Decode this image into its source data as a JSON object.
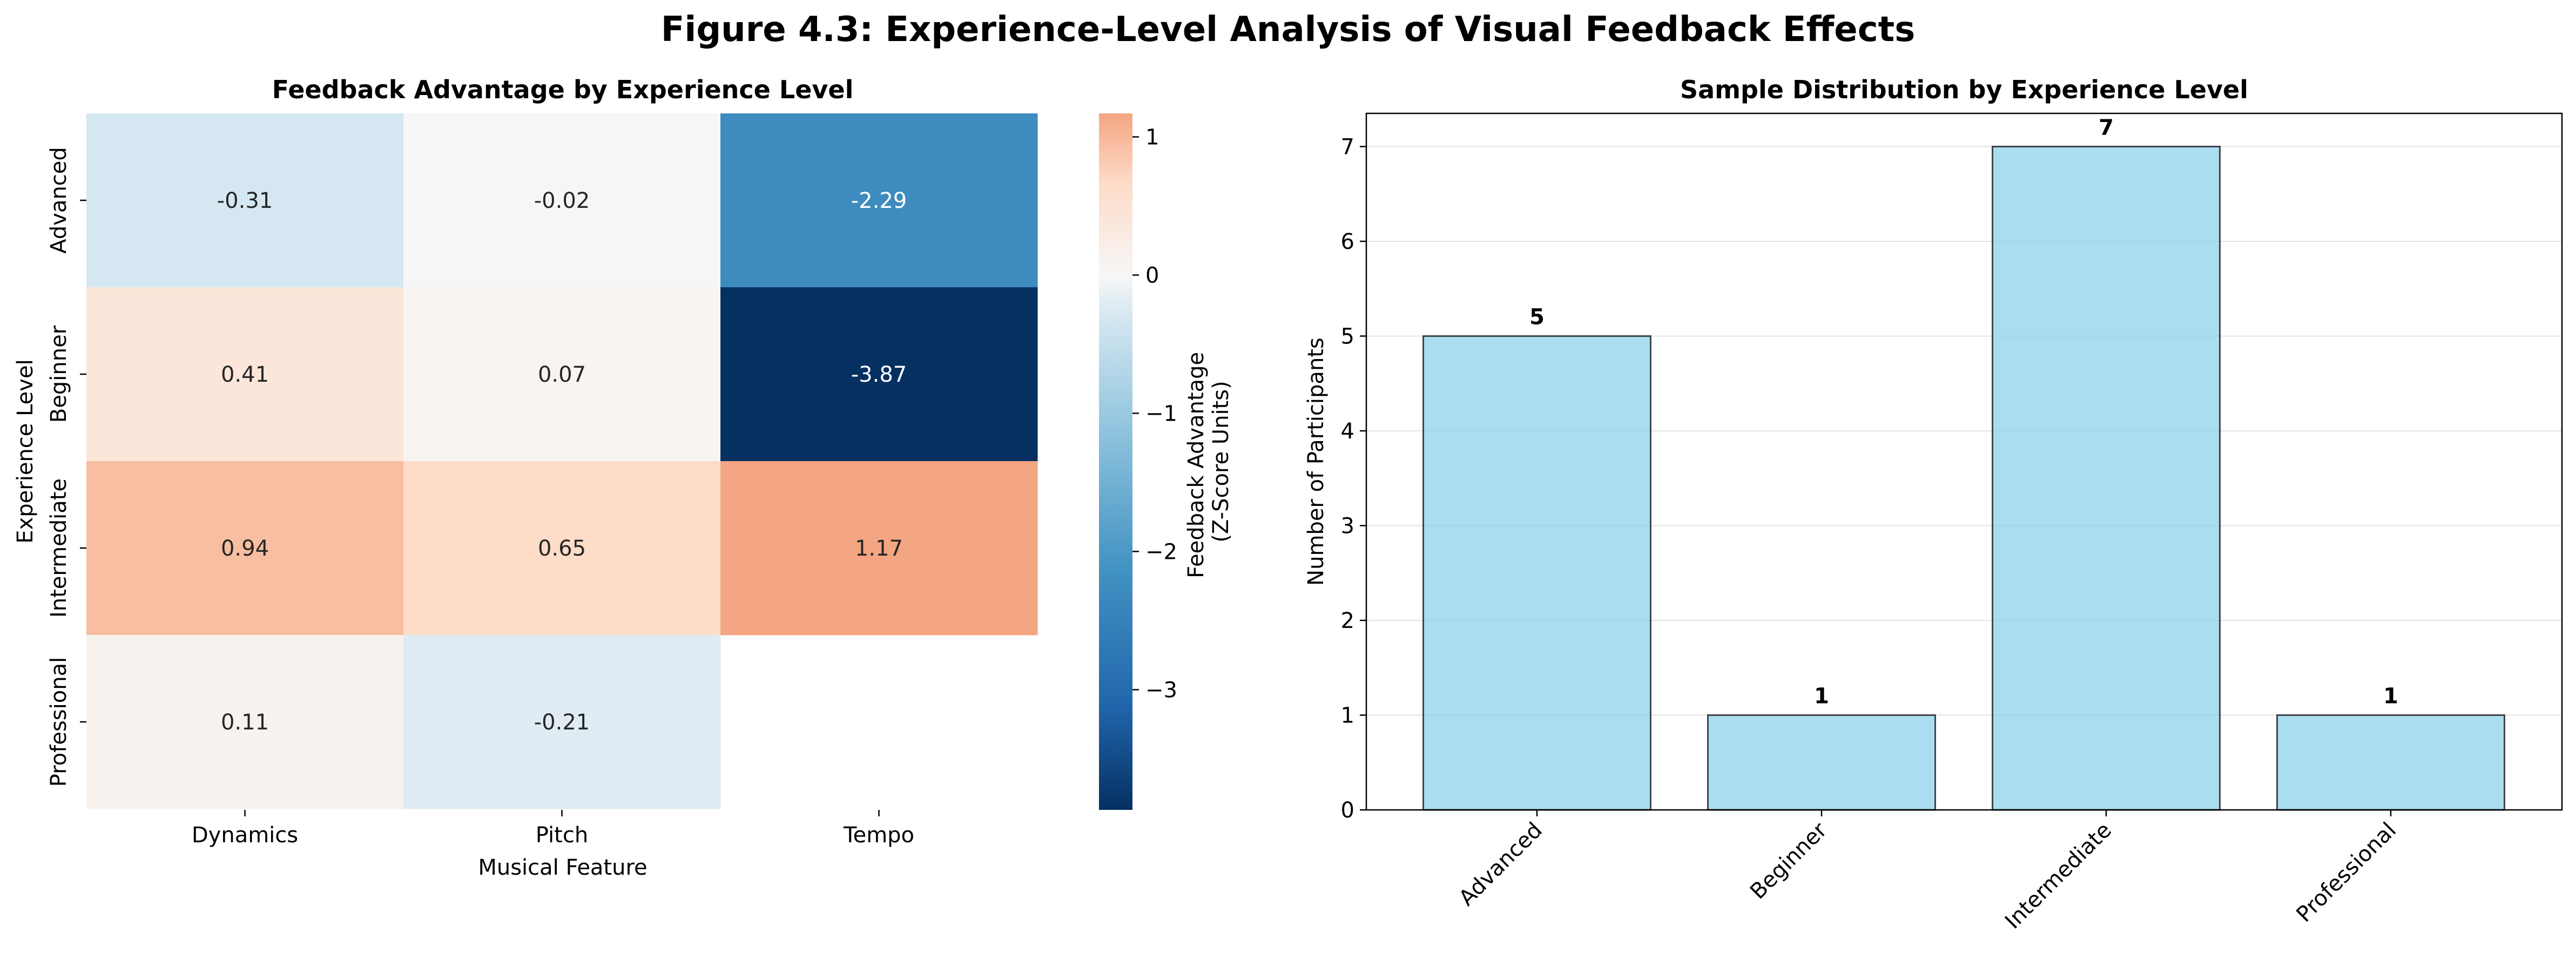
{
  "figure_title": "Figure 4.3: Experience-Level Analysis of Visual Feedback Effects",
  "chart_data": [
    {
      "type": "heatmap",
      "title": "Feedback Advantage by Experience Level",
      "xlabel": "Musical Feature",
      "ylabel": "Experience Level",
      "x_categories": [
        "Dynamics",
        "Pitch",
        "Tempo"
      ],
      "y_categories": [
        "Advanced",
        "Beginner",
        "Intermediate",
        "Professional"
      ],
      "values": [
        [
          -0.31,
          -0.02,
          -2.29
        ],
        [
          0.41,
          0.07,
          -3.87
        ],
        [
          0.94,
          0.65,
          1.17
        ],
        [
          0.11,
          -0.21,
          null
        ]
      ],
      "colormap": "RdBu_r",
      "color_range": [
        -3.87,
        1.17
      ],
      "colorbar_label_line1": "Feedback Advantage",
      "colorbar_label_line2": "(Z-Score Units)",
      "colorbar_ticks": [
        1,
        0,
        -1,
        -2,
        -3
      ],
      "colorbar_tick_labels": [
        "1",
        "0",
        "−1",
        "−2",
        "−3"
      ]
    },
    {
      "type": "bar",
      "title": "Sample Distribution by Experience Level",
      "xlabel": "",
      "ylabel": "Number of Participants",
      "categories": [
        "Advanced",
        "Beginner",
        "Intermediate",
        "Professional"
      ],
      "values": [
        5,
        1,
        7,
        1
      ],
      "ylim": [
        0,
        7.35
      ],
      "yticks": [
        0,
        1,
        2,
        3,
        4,
        5,
        6,
        7
      ],
      "bar_color": "#87ceeb",
      "grid": "y"
    }
  ]
}
